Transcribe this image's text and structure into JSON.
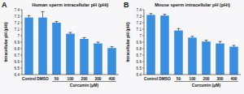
{
  "chart_data": [
    {
      "type": "bar",
      "annotation": "A",
      "title": "Human sperm intracellular pH (pHi)",
      "x_label": "Curcumin (μM)",
      "y_label": "Intracellular pH (pHi)",
      "categories": [
        "Control",
        "DMSO",
        "50",
        "100",
        "200",
        "300",
        "400"
      ],
      "values": [
        7.28,
        7.28,
        7.2,
        7.03,
        6.95,
        6.88,
        6.81
      ],
      "errors": [
        0.03,
        0.09,
        0.02,
        0.02,
        0.02,
        0.02,
        0.02
      ],
      "color": "#3a8ee0",
      "ylim": [
        6.4,
        7.4
      ],
      "yticks": [
        6.4,
        6.5,
        6.6,
        6.7,
        6.8,
        6.9,
        7.0,
        7.1,
        7.2,
        7.3,
        7.4
      ],
      "grid": false
    },
    {
      "type": "bar",
      "annotation": "B",
      "title": "Mouse sperm intracellular pH (pHi)",
      "x_label": "Curcumin (μM)",
      "y_label": "Intracellular pH (pHi)",
      "categories": [
        "Control",
        "DMSO",
        "50",
        "100",
        "200",
        "300",
        "400"
      ],
      "values": [
        7.32,
        7.31,
        7.08,
        6.97,
        6.91,
        6.88,
        6.83
      ],
      "errors": [
        0.02,
        0.02,
        0.03,
        0.02,
        0.02,
        0.03,
        0.02
      ],
      "color": "#3a8ee0",
      "ylim": [
        6.4,
        7.4
      ],
      "yticks": [
        6.4,
        6.5,
        6.6,
        6.7,
        6.8,
        6.9,
        7.0,
        7.1,
        7.2,
        7.3,
        7.4
      ],
      "grid": false
    }
  ]
}
